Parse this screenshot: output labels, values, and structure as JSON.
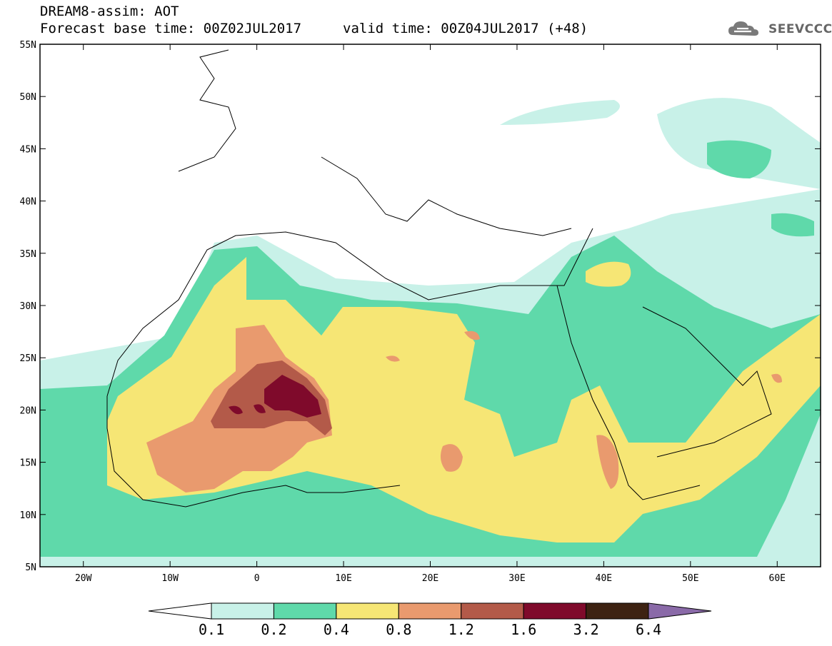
{
  "title": {
    "line1": "DREAM8-assim: AOT",
    "line2": "Forecast base time: 00Z02JUL2017",
    "line3": "valid time: 00Z04JUL2017 (+48)"
  },
  "logo": {
    "text": "SEEVCCC"
  },
  "map": {
    "lon_range": [
      -25,
      65
    ],
    "lat_range": [
      5,
      55
    ],
    "lon_ticks": [
      {
        "value": -20,
        "label": "20W"
      },
      {
        "value": -10,
        "label": "10W"
      },
      {
        "value": 0,
        "label": "0"
      },
      {
        "value": 10,
        "label": "10E"
      },
      {
        "value": 20,
        "label": "20E"
      },
      {
        "value": 30,
        "label": "30E"
      },
      {
        "value": 40,
        "label": "40E"
      },
      {
        "value": 50,
        "label": "50E"
      },
      {
        "value": 60,
        "label": "60E"
      }
    ],
    "lat_ticks": [
      {
        "value": 55,
        "label": "55N"
      },
      {
        "value": 50,
        "label": "50N"
      },
      {
        "value": 45,
        "label": "45N"
      },
      {
        "value": 40,
        "label": "40N"
      },
      {
        "value": 35,
        "label": "35N"
      },
      {
        "value": 30,
        "label": "30N"
      },
      {
        "value": 25,
        "label": "25N"
      },
      {
        "value": 20,
        "label": "20N"
      },
      {
        "value": 15,
        "label": "15N"
      },
      {
        "value": 10,
        "label": "10N"
      },
      {
        "value": 5,
        "label": "5N"
      }
    ]
  },
  "colorbar": {
    "colors": [
      "#ffffff",
      "#c8f1e8",
      "#5fd9aa",
      "#f6e675",
      "#e99a6e",
      "#b35a49",
      "#7f0a2b",
      "#3d2212",
      "#8a6aa8"
    ],
    "labels": [
      "0.1",
      "0.2",
      "0.4",
      "0.8",
      "1.2",
      "1.6",
      "3.2",
      "6.4"
    ]
  }
}
